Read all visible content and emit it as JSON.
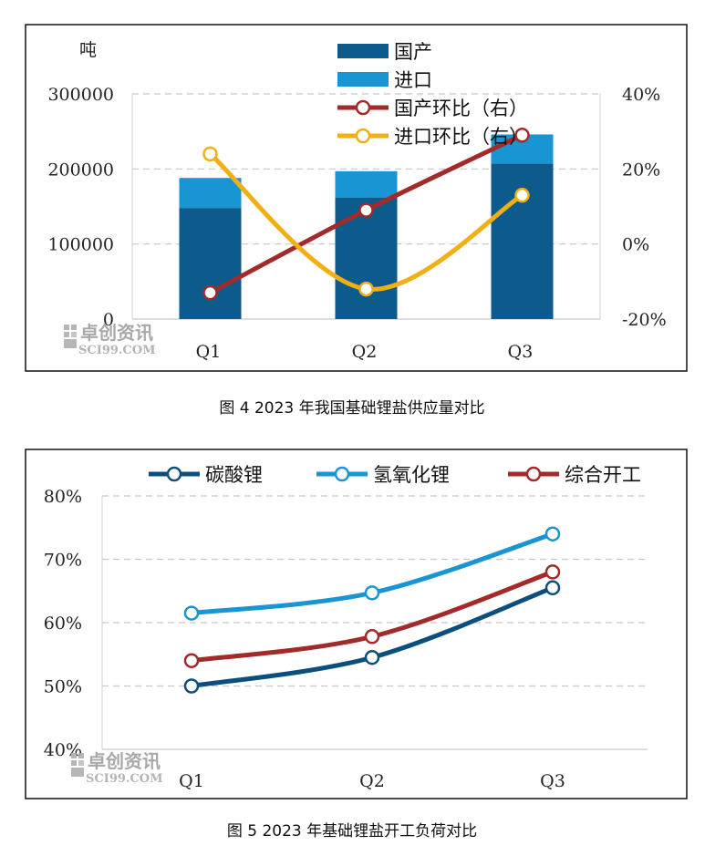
{
  "watermark": {
    "cn": "卓创资讯",
    "en": "SCI99.COM"
  },
  "chart_data": [
    {
      "type": "bar",
      "caption": "图 4  2023 年我国基础锂盐供应量对比",
      "unit_label": "吨",
      "categories": [
        "Q1",
        "Q2",
        "Q3"
      ],
      "stacked": true,
      "y_left": {
        "min": 0,
        "max": 300000,
        "ticks": [
          "0",
          "100000",
          "200000",
          "300000"
        ]
      },
      "y_right": {
        "min": -20,
        "max": 40,
        "ticks": [
          "-20%",
          "0%",
          "20%",
          "40%"
        ]
      },
      "grid": true,
      "legend_position": "top-right",
      "series": [
        {
          "name": "国产",
          "type": "bar",
          "axis": "left",
          "color": "#0d5a8c",
          "values": [
            148000,
            162000,
            207000
          ]
        },
        {
          "name": "进口",
          "type": "bar",
          "axis": "left",
          "color": "#1a95d4",
          "values": [
            40000,
            35000,
            39000
          ]
        },
        {
          "name": "国产环比（右）",
          "type": "line",
          "axis": "right",
          "color": "#a32a2a",
          "values": [
            -13,
            9,
            29
          ]
        },
        {
          "name": "进口环比（右）",
          "type": "line",
          "axis": "right",
          "color": "#f0b013",
          "values": [
            24,
            -12,
            13
          ]
        }
      ]
    },
    {
      "type": "line",
      "caption": "图 5  2023 年基础锂盐开工负荷对比",
      "categories": [
        "Q1",
        "Q2",
        "Q3"
      ],
      "y": {
        "min": 40,
        "max": 80,
        "ticks": [
          "40%",
          "50%",
          "60%",
          "70%",
          "80%"
        ]
      },
      "grid": true,
      "legend_position": "top",
      "series": [
        {
          "name": "碳酸锂",
          "color": "#0d4f7c",
          "values": [
            50,
            54.5,
            65.5
          ]
        },
        {
          "name": "氢氧化锂",
          "color": "#1a95d4",
          "values": [
            61.5,
            64.7,
            74
          ]
        },
        {
          "name": "综合开工",
          "color": "#a32a2a",
          "values": [
            54,
            57.8,
            68
          ]
        }
      ]
    }
  ]
}
